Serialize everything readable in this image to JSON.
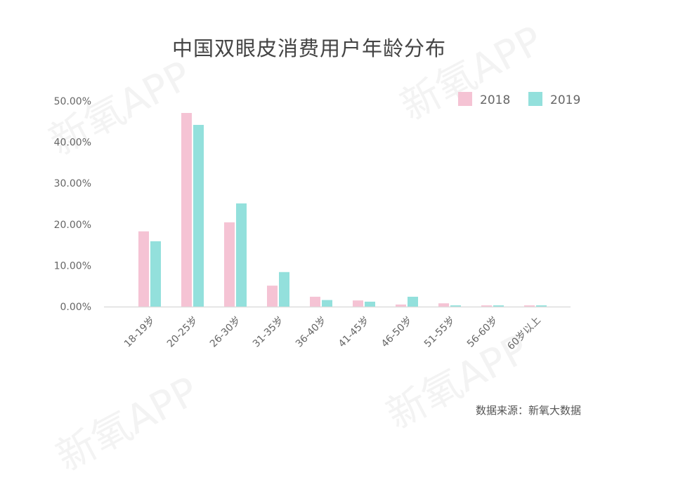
{
  "watermark": "新氧APP",
  "chart_data": {
    "type": "bar",
    "title": "中国双眼皮消费用户年龄分布",
    "categories": [
      "18-19岁",
      "20-25岁",
      "26-30岁",
      "31-35岁",
      "36-40岁",
      "41-45岁",
      "46-50岁",
      "51-55岁",
      "56-60岁",
      "60岁以上"
    ],
    "series": [
      {
        "name": "2018",
        "color": "#f5c3d4",
        "values": [
          18.3,
          47.1,
          20.5,
          5.1,
          2.4,
          1.5,
          0.5,
          0.8,
          0.3,
          0.3
        ]
      },
      {
        "name": "2019",
        "color": "#93e0dc",
        "values": [
          15.9,
          44.2,
          25.1,
          8.4,
          1.6,
          1.2,
          2.4,
          0.3,
          0.3,
          0.3
        ]
      }
    ],
    "yticks": [
      "0.00%",
      "10.00%",
      "20.00%",
      "30.00%",
      "40.00%",
      "50.00%"
    ],
    "ylim": [
      0,
      50
    ],
    "unit": "%",
    "legend": "top-right",
    "grid": false,
    "source": "数据来源：新氧大数据"
  }
}
